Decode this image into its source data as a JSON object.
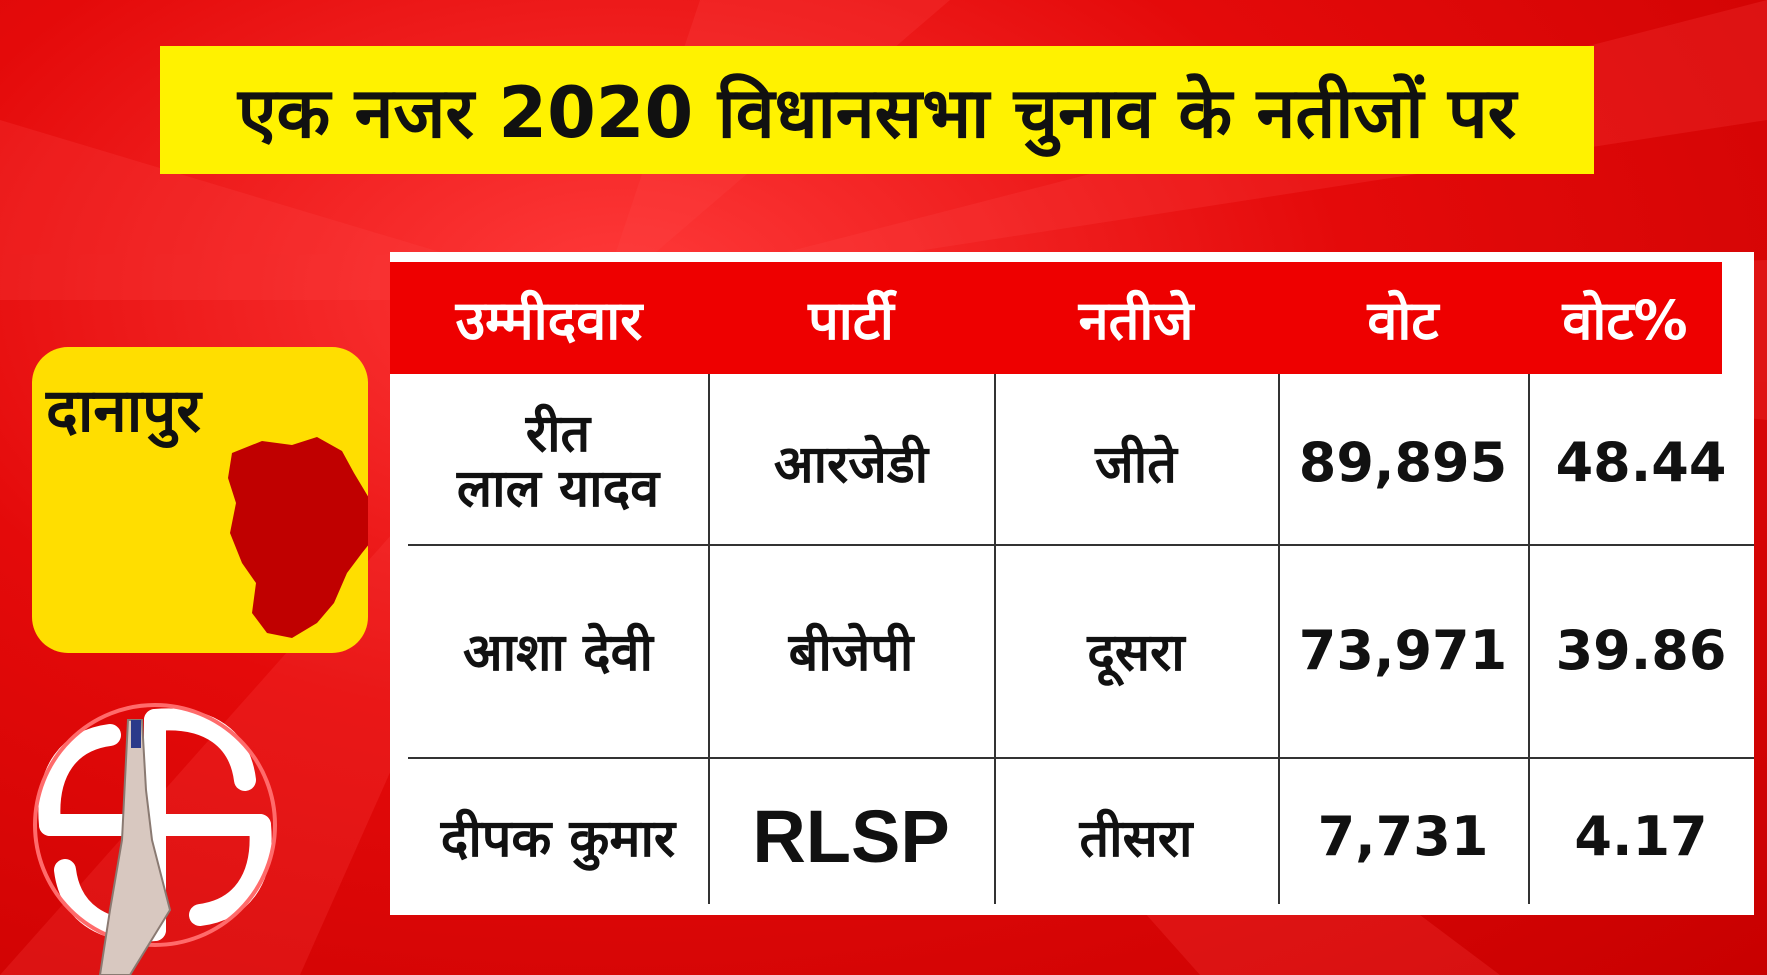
{
  "title": "एक नजर 2020 विधानसभा चुनाव के नतीजों पर",
  "constituency": "दानापुर",
  "colors": {
    "background": "#e40a0a",
    "title_bar": "#fff200",
    "header": "#ee0000",
    "badge": "#ffde00",
    "map": "#c00000"
  },
  "icons": {
    "map": "constituency-map-icon",
    "emblem": "election-symbol-icon"
  },
  "table": {
    "headers": [
      "उम्मीदवार",
      "पार्टी",
      "नतीजे",
      "वोट",
      "वोट%"
    ],
    "rows": [
      {
        "candidate_line1": "रीत",
        "candidate_line2": "लाल यादव",
        "party": "आरजेडी",
        "result": "जीते",
        "votes": "89,895",
        "vote_pct": "48.44"
      },
      {
        "candidate": "आशा देवी",
        "party": "बीजेपी",
        "result": "दूसरा",
        "votes": "73,971",
        "vote_pct": "39.86"
      },
      {
        "candidate": "दीपक कुमार",
        "party": "RLSP",
        "result": "तीसरा",
        "votes": "7,731",
        "vote_pct": "4.17"
      }
    ]
  }
}
